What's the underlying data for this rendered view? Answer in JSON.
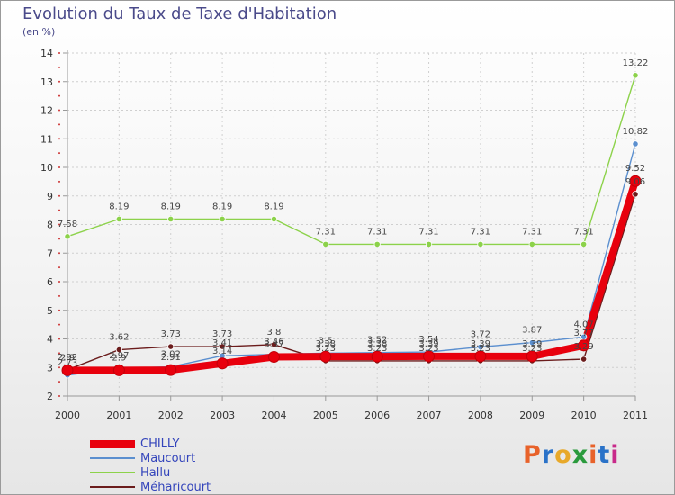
{
  "header": {
    "title": "Evolution du Taux de Taxe d'Habitation",
    "unit": "(en %)"
  },
  "brand": {
    "text": "Proxiti",
    "colors": [
      "#e8622a",
      "#2a72c8",
      "#e8a92a",
      "#2a9a3c",
      "#e8622a",
      "#2a72c8",
      "#c82a8a"
    ]
  },
  "chart_data": {
    "type": "line",
    "title": "Evolution du Taux de Taxe d'Habitation",
    "ylabel": "(en %)",
    "xlabel": "",
    "ylim": [
      2,
      14
    ],
    "yticks": [
      2,
      3,
      4,
      5,
      6,
      7,
      8,
      9,
      10,
      11,
      12,
      13,
      14
    ],
    "x": [
      "2000",
      "2001",
      "2002",
      "2003",
      "2004",
      "2005",
      "2006",
      "2007",
      "2008",
      "2009",
      "2010",
      "2011"
    ],
    "legend_position": "bottom-left",
    "series": [
      {
        "name": "Méharicourt",
        "color": "#6b1c1c",
        "values": [
          2.92,
          3.62,
          3.73,
          3.73,
          3.8,
          3.23,
          3.23,
          3.23,
          3.23,
          3.23,
          3.29,
          9.06
        ],
        "labels": [
          "2.92",
          "3.62",
          "3.73",
          "3.73",
          "3.8",
          "3.23",
          "3.23",
          "3.23",
          "3.23",
          "3.23",
          "3.29",
          "9.06"
        ]
      },
      {
        "name": "Hallu",
        "color": "#8cd24a",
        "values": [
          7.58,
          8.19,
          8.19,
          8.19,
          8.19,
          7.31,
          7.31,
          7.31,
          7.31,
          7.31,
          7.31,
          13.22
        ],
        "labels": [
          "7.58",
          "8.19",
          "8.19",
          "8.19",
          "8.19",
          "7.31",
          "7.31",
          "7.31",
          "7.31",
          "7.31",
          "7.31",
          "13.22"
        ]
      },
      {
        "name": "Maucourt",
        "color": "#5b8fcf",
        "values": [
          2.73,
          2.97,
          3.02,
          3.41,
          3.46,
          3.5,
          3.52,
          3.54,
          3.72,
          3.87,
          4.07,
          10.82
        ],
        "labels": [
          "2.73",
          "2.97",
          "3.02",
          "3.41",
          "3.46",
          "3.5",
          "3.52",
          "3.54",
          "3.72",
          "3.87",
          "4.07",
          "10.82"
        ]
      },
      {
        "name": "CHILLY",
        "color": "#e8000d",
        "values": [
          2.9,
          2.9,
          2.91,
          3.14,
          3.37,
          3.38,
          3.38,
          3.39,
          3.39,
          3.39,
          3.77,
          9.52
        ],
        "labels": [
          "2.9",
          "2.9",
          "2.91",
          "3.14",
          "3.37",
          "3.38",
          "3.38",
          "3.39",
          "3.39",
          "3.39",
          "3.77",
          "9.52"
        ]
      }
    ],
    "legend_order": [
      "CHILLY",
      "Maucourt",
      "Hallu",
      "Méharicourt"
    ]
  }
}
